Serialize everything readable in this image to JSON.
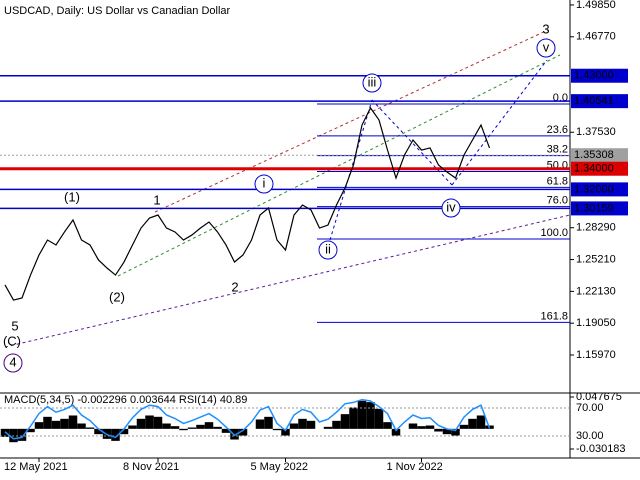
{
  "chart_data": {
    "type": "line",
    "title": "USDCAD, Daily:  US Dollar vs Canadian Dollar",
    "categories": [
      null,
      null,
      null,
      null,
      "12 May 2021",
      null,
      null,
      null,
      null,
      null,
      null,
      null,
      null,
      null,
      null,
      null,
      null,
      null,
      "8 Nov 2021",
      null,
      null,
      null,
      null,
      null,
      null,
      null,
      null,
      null,
      null,
      null,
      null,
      null,
      null,
      "5 May 2022",
      null,
      null,
      null,
      null,
      null,
      null,
      null,
      null,
      null,
      null,
      null,
      null,
      null,
      null,
      null,
      "1 Nov 2022",
      null,
      null,
      null,
      null,
      null,
      null,
      null,
      null
    ],
    "series": [
      {
        "color": "#000000",
        "values": [
          1.2275,
          1.2129,
          1.2149,
          1.2371,
          1.2565,
          1.271,
          1.2662,
          1.2788,
          1.2904,
          1.271,
          1.2662,
          1.2517,
          1.2439,
          1.2371,
          1.2497,
          1.2662,
          1.2826,
          1.2923,
          1.2952,
          1.2826,
          1.2788,
          1.271,
          1.2759,
          1.2826,
          1.2884,
          1.2788,
          1.2662,
          1.2497,
          1.2565,
          1.271,
          1.2952,
          1.302,
          1.271,
          1.2613,
          1.2952,
          1.3049,
          1.3001,
          1.2826,
          1.2855,
          1.3049,
          1.3214,
          1.3436,
          1.3823,
          1.3988,
          1.3872,
          1.3581,
          1.331,
          1.3533,
          1.3678,
          1.3581,
          1.3601,
          1.3436,
          1.3368,
          1.331,
          1.3533,
          1.3678,
          1.3823,
          1.3601
        ]
      }
    ],
    "ylim": [
      1.1239,
      1.5033
    ],
    "yticks": [
      {
        "value": 1.4985,
        "label": "1.49850"
      },
      {
        "value": 1.4677,
        "label": "1.46770"
      },
      {
        "value": 1.3753,
        "label": "1.37530"
      },
      {
        "value": 1.2829,
        "label": "1.28290"
      },
      {
        "value": 1.2521,
        "label": "1.25210"
      },
      {
        "value": 1.2213,
        "label": "1.22130"
      },
      {
        "value": 1.1905,
        "label": "1.19050"
      },
      {
        "value": 1.1597,
        "label": "1.15970"
      }
    ],
    "levels": [
      {
        "value": 1.43,
        "label": "1.43000",
        "color": "#0000cc"
      },
      {
        "value": 1.40541,
        "label": "1.40541",
        "color": "#0000cc"
      },
      {
        "value": 1.35308,
        "label": "1.35308",
        "color": "#a0a0a0"
      },
      {
        "value": 1.34,
        "label": "1.34000",
        "color": "#dd0000"
      },
      {
        "value": 1.32,
        "label": "1.32000",
        "color": "#0000cc"
      },
      {
        "value": 1.30159,
        "label": "1.30159",
        "color": "#0000cc"
      }
    ],
    "fib": {
      "color": "#0000cc",
      "levels": [
        {
          "value": 0,
          "label": "0.0"
        },
        23.6,
        38.2,
        {
          "value": 50,
          "label": "50.0"
        },
        61.8,
        {
          "value": 76,
          "label": "76.0"
        },
        {
          "value": 100,
          "label": "100.0"
        },
        161.8
      ]
    },
    "annotations": [
      {
        "text": "5",
        "color": "#b03030"
      },
      {
        "text": "(C)",
        "color": "#2e8b2e"
      },
      {
        "text": "4",
        "color": "#4b0082"
      },
      {
        "text": "(1)",
        "color": "#2e8b2e"
      },
      {
        "text": "1",
        "color": "#b03030"
      },
      {
        "text": "(2)",
        "color": "#2e8b2e"
      },
      {
        "text": "2",
        "color": "#b03030"
      },
      {
        "text": "i",
        "color": "#0000cc"
      },
      {
        "text": "ii",
        "color": "#0000cc"
      },
      {
        "text": "iii",
        "color": "#0000cc"
      },
      {
        "text": "iv",
        "color": "#0000cc"
      },
      {
        "text": "v",
        "color": "#0000cc"
      },
      {
        "text": "3",
        "color": "#b03030"
      }
    ],
    "indicator": {
      "type": "bar",
      "title": "MACD(5,34,5) -0.002296 0.003644 RSI(14) 40.89",
      "color": "#000000",
      "ylim": [
        -0.030183,
        0.047675
      ],
      "yticks": [
        0.047675,
        -0.030183
      ],
      "values": [
        -0.012,
        -0.02,
        -0.018,
        -0.005,
        0.01,
        0.018,
        0.012,
        0.015,
        0.02,
        0.008,
        0.002,
        -0.008,
        -0.015,
        -0.018,
        -0.008,
        0.005,
        0.015,
        0.02,
        0.018,
        0.008,
        0.004,
        -0.002,
        0.002,
        0.006,
        0.01,
        0.003,
        -0.006,
        -0.016,
        -0.01,
        0.0,
        0.014,
        0.018,
        -0.002,
        -0.01,
        0.008,
        0.015,
        0.012,
        0.0,
        0.003,
        0.012,
        0.022,
        0.032,
        0.042,
        0.04,
        0.03,
        0.01,
        -0.01,
        0.0,
        0.008,
        0.004,
        0.005,
        -0.004,
        -0.008,
        -0.01,
        0.006,
        0.015,
        0.02,
        0.005
      ],
      "rsi": {
        "color": "#1e90ff",
        "ylim": [
          0,
          100
        ],
        "yticks": [
          {
            "value": 70,
            "label": "70.00"
          },
          {
            "value": 30,
            "label": "30.00"
          }
        ],
        "values": [
          36,
          26,
          28,
          44,
          62,
          72,
          64,
          68,
          74,
          60,
          52,
          40,
          32,
          28,
          40,
          56,
          68,
          74,
          72,
          60,
          55,
          48,
          52,
          57,
          62,
          54,
          43,
          31,
          38,
          50,
          67,
          72,
          48,
          38,
          60,
          68,
          64,
          50,
          54,
          64,
          76,
          78,
          82,
          80,
          72,
          62,
          38,
          50,
          60,
          55,
          56,
          45,
          40,
          38,
          57,
          68,
          74,
          41
        ]
      }
    }
  }
}
